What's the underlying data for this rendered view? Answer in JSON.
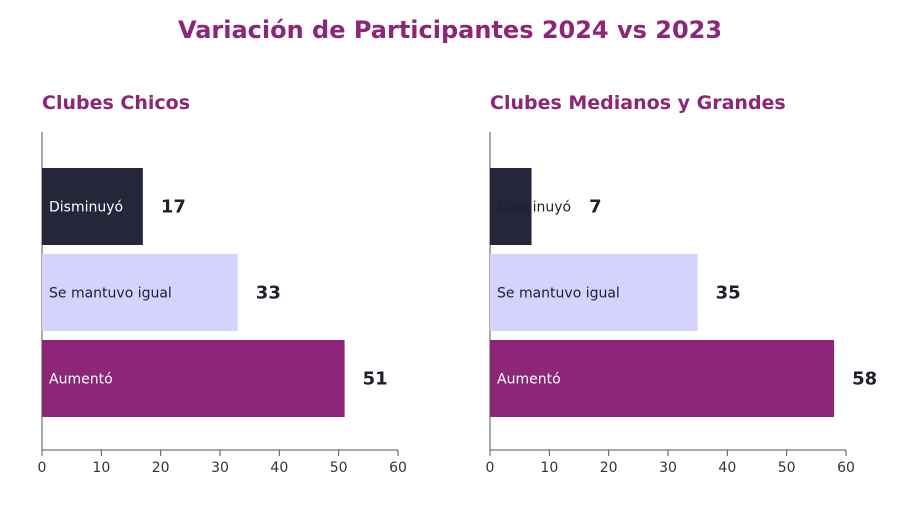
{
  "title": "Variación de Participantes 2024 vs 2023",
  "chart_data": [
    {
      "type": "bar",
      "orientation": "horizontal",
      "title": "Clubes Chicos",
      "categories": [
        "Disminuyó",
        "Se mantuvo igual",
        "Aumentó"
      ],
      "values": [
        17,
        33,
        51
      ],
      "data_labels": [
        "17",
        "33",
        "51"
      ],
      "xlim": [
        0,
        60
      ],
      "xticks": [
        0,
        10,
        20,
        30,
        40,
        50,
        60
      ],
      "grid": false,
      "legend": "none",
      "colors": [
        "#26263a",
        "#d4d3fb",
        "#8b2776"
      ],
      "label_colors": [
        "#ffffff",
        "#1f1f2e",
        "#ffffff"
      ]
    },
    {
      "type": "bar",
      "orientation": "horizontal",
      "title": "Clubes Medianos y Grandes",
      "categories": [
        "Disminuyó",
        "Se mantuvo igual",
        "Aumentó"
      ],
      "values": [
        7,
        35,
        58
      ],
      "data_labels": [
        "7",
        "35",
        "58"
      ],
      "xlim": [
        0,
        60
      ],
      "xticks": [
        0,
        10,
        20,
        30,
        40,
        50,
        60
      ],
      "grid": false,
      "legend": "none",
      "colors": [
        "#26263a",
        "#d4d3fb",
        "#8b2776"
      ],
      "label_colors": [
        "#1f1f2e",
        "#1f1f2e",
        "#ffffff"
      ]
    }
  ]
}
